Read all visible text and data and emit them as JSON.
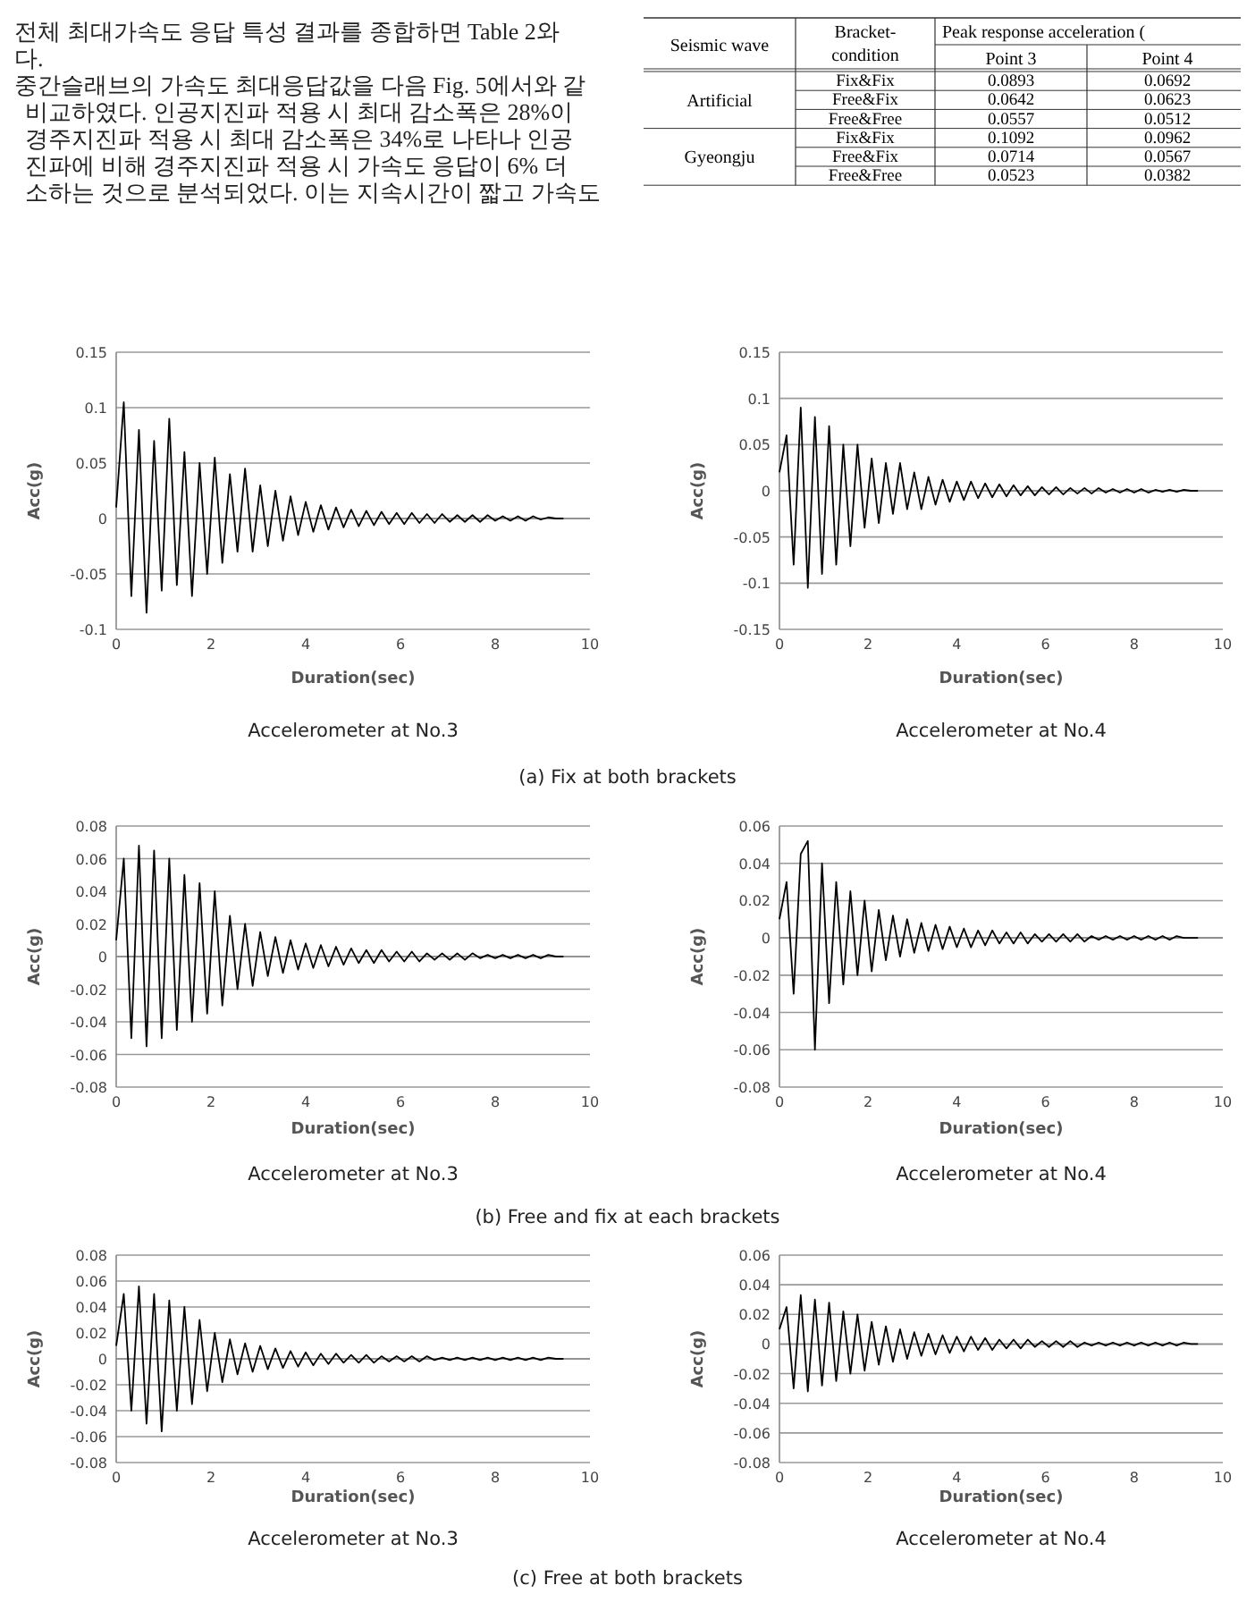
{
  "chart_data": [
    {
      "type": "other",
      "annotations": [
        "전체 최대가속도 응답 특성 결과를 종합하면 Table 2와",
        "다.",
        "중간슬래브의 가속도 최대응답값을 다음 Fig. 5에서와 같",
        "비교하였다. 인공지진파 적용 시 최대 감소폭은 28%이",
        "경주지진파 적용 시 최대 감소폭은 34%로 나타나 인공",
        "진파에 비해 경주지진파 적용 시 가속도 응답이 6% 더",
        "소하는 것으로 분석되었다. 이는 지속시간이 짧고 가속도"
      ]
    },
    {
      "type": "heatmap",
      "y2label": "Seismic wave",
      "ylabel": "Bracket-condition",
      "xlabel": "Peak response acceleration (",
      "categories": [
        "Point 3",
        "Point 4"
      ],
      "y_categories": [
        "Fix&Fix",
        "Free&Fix",
        "Free&Free",
        "Fix&Fix",
        "Free&Fix",
        "Free&Free"
      ],
      "y2_categories": [
        null,
        "Artificial",
        null,
        null,
        "Gyeongju",
        null
      ],
      "cells": [
        [
          0.0893,
          0.0692
        ],
        [
          0.0642,
          0.0623
        ],
        [
          0.0557,
          0.0512
        ],
        [
          0.1092,
          0.0962
        ],
        [
          0.0714,
          0.0567
        ],
        [
          0.0523,
          0.0382
        ]
      ],
      "data_labels": true
    },
    {
      "type": "line",
      "title": "Accelerometer at No.3",
      "xlabel": "Duration(sec)",
      "ylabel": "Acc(g)",
      "annotations": [
        "(a) Fix at both brackets"
      ],
      "x": [
        0,
        0.16,
        0.32,
        0.48,
        0.64,
        0.8,
        0.96,
        1.12,
        1.28,
        1.44,
        1.6,
        1.76,
        1.92,
        2.08,
        2.24,
        2.4,
        2.56,
        2.72,
        2.88,
        3.04,
        3.2,
        3.36,
        3.52,
        3.68,
        3.84,
        4,
        4.16,
        4.32,
        4.48,
        4.64,
        4.8,
        4.96,
        5.12,
        5.28,
        5.44,
        5.6,
        5.76,
        5.92,
        6.08,
        6.24,
        6.4,
        6.56,
        6.72,
        6.88,
        7.04,
        7.2,
        7.36,
        7.52,
        7.68,
        7.84,
        8,
        8.16,
        8.32,
        8.48,
        8.64,
        8.8,
        8.96,
        9.12,
        9.28,
        9.44
      ],
      "series": [
        {
          "color": "#000000",
          "values": [
            0.01,
            0.105,
            -0.07,
            0.08,
            -0.085,
            0.07,
            -0.065,
            0.09,
            -0.06,
            0.06,
            -0.07,
            0.05,
            -0.05,
            0.055,
            -0.04,
            0.04,
            -0.03,
            0.045,
            -0.03,
            0.03,
            -0.025,
            0.025,
            -0.02,
            0.02,
            -0.015,
            0.015,
            -0.012,
            0.012,
            -0.01,
            0.01,
            -0.008,
            0.008,
            -0.007,
            0.007,
            -0.006,
            0.006,
            -0.005,
            0.005,
            -0.005,
            0.005,
            -0.004,
            0.004,
            -0.004,
            0.004,
            -0.003,
            0.003,
            -0.003,
            0.003,
            -0.003,
            0.003,
            -0.002,
            0.002,
            -0.002,
            0.002,
            -0.002,
            0.002,
            -0.001,
            0.001,
            0,
            0
          ]
        }
      ],
      "xlim": [
        0,
        10
      ],
      "xticks": [
        0,
        2,
        4,
        6,
        8,
        10
      ],
      "ylim": [
        -0.1,
        0.15
      ],
      "yticks": [
        -0.1,
        -0.05,
        0,
        0.05,
        0.1,
        0.15
      ],
      "grid": "y"
    },
    {
      "type": "line",
      "title": "Accelerometer at No.4",
      "xlabel": "Duration(sec)",
      "ylabel": "Acc(g)",
      "x": [
        0,
        0.16,
        0.32,
        0.48,
        0.64,
        0.8,
        0.96,
        1.12,
        1.28,
        1.44,
        1.6,
        1.76,
        1.92,
        2.08,
        2.24,
        2.4,
        2.56,
        2.72,
        2.88,
        3.04,
        3.2,
        3.36,
        3.52,
        3.68,
        3.84,
        4,
        4.16,
        4.32,
        4.48,
        4.64,
        4.8,
        4.96,
        5.12,
        5.28,
        5.44,
        5.6,
        5.76,
        5.92,
        6.08,
        6.24,
        6.4,
        6.56,
        6.72,
        6.88,
        7.04,
        7.2,
        7.36,
        7.52,
        7.68,
        7.84,
        8,
        8.16,
        8.32,
        8.48,
        8.64,
        8.8,
        8.96,
        9.12,
        9.28,
        9.44
      ],
      "series": [
        {
          "color": "#000000",
          "values": [
            0.02,
            0.06,
            -0.08,
            0.09,
            -0.105,
            0.08,
            -0.09,
            0.07,
            -0.08,
            0.05,
            -0.06,
            0.05,
            -0.04,
            0.035,
            -0.035,
            0.03,
            -0.025,
            0.03,
            -0.02,
            0.02,
            -0.02,
            0.015,
            -0.015,
            0.012,
            -0.012,
            0.01,
            -0.01,
            0.01,
            -0.008,
            0.008,
            -0.007,
            0.007,
            -0.006,
            0.006,
            -0.005,
            0.005,
            -0.005,
            0.004,
            -0.004,
            0.004,
            -0.004,
            0.003,
            -0.003,
            0.003,
            -0.003,
            0.003,
            -0.002,
            0.002,
            -0.002,
            0.002,
            -0.002,
            0.002,
            -0.002,
            0.001,
            -0.001,
            0.001,
            -0.001,
            0.001,
            0,
            0
          ]
        }
      ],
      "xlim": [
        0,
        10
      ],
      "xticks": [
        0,
        2,
        4,
        6,
        8,
        10
      ],
      "ylim": [
        -0.15,
        0.15
      ],
      "yticks": [
        -0.15,
        -0.1,
        -0.05,
        0,
        0.05,
        0.1,
        0.15
      ],
      "grid": "y"
    },
    {
      "type": "line",
      "title": "Accelerometer at No.3",
      "xlabel": "Duration(sec)",
      "ylabel": "Acc(g)",
      "annotations": [
        "(b) Free and fix at each brackets"
      ],
      "x": [
        0,
        0.16,
        0.32,
        0.48,
        0.64,
        0.8,
        0.96,
        1.12,
        1.28,
        1.44,
        1.6,
        1.76,
        1.92,
        2.08,
        2.24,
        2.4,
        2.56,
        2.72,
        2.88,
        3.04,
        3.2,
        3.36,
        3.52,
        3.68,
        3.84,
        4,
        4.16,
        4.32,
        4.48,
        4.64,
        4.8,
        4.96,
        5.12,
        5.28,
        5.44,
        5.6,
        5.76,
        5.92,
        6.08,
        6.24,
        6.4,
        6.56,
        6.72,
        6.88,
        7.04,
        7.2,
        7.36,
        7.52,
        7.68,
        7.84,
        8,
        8.16,
        8.32,
        8.48,
        8.64,
        8.8,
        8.96,
        9.12,
        9.28,
        9.44
      ],
      "series": [
        {
          "color": "#000000",
          "values": [
            0.01,
            0.06,
            -0.05,
            0.068,
            -0.055,
            0.065,
            -0.05,
            0.06,
            -0.045,
            0.05,
            -0.04,
            0.045,
            -0.035,
            0.04,
            -0.03,
            0.025,
            -0.02,
            0.02,
            -0.018,
            0.015,
            -0.012,
            0.012,
            -0.01,
            0.01,
            -0.008,
            0.008,
            -0.007,
            0.007,
            -0.006,
            0.006,
            -0.005,
            0.005,
            -0.004,
            0.004,
            -0.004,
            0.004,
            -0.003,
            0.003,
            -0.003,
            0.003,
            -0.003,
            0.002,
            -0.002,
            0.002,
            -0.002,
            0.002,
            -0.002,
            0.002,
            -0.001,
            0.001,
            -0.001,
            0.001,
            -0.001,
            0.001,
            -0.001,
            0.001,
            -0.001,
            0.001,
            0,
            0
          ]
        }
      ],
      "xlim": [
        0,
        10
      ],
      "xticks": [
        0,
        2,
        4,
        6,
        8,
        10
      ],
      "ylim": [
        -0.08,
        0.08
      ],
      "yticks": [
        -0.08,
        -0.06,
        -0.04,
        -0.02,
        0,
        0.02,
        0.04,
        0.06,
        0.08
      ],
      "grid": "y"
    },
    {
      "type": "line",
      "title": "Accelerometer at No.4",
      "xlabel": "Duration(sec)",
      "ylabel": "Acc(g)",
      "x": [
        0,
        0.16,
        0.32,
        0.48,
        0.64,
        0.8,
        0.96,
        1.12,
        1.28,
        1.44,
        1.6,
        1.76,
        1.92,
        2.08,
        2.24,
        2.4,
        2.56,
        2.72,
        2.88,
        3.04,
        3.2,
        3.36,
        3.52,
        3.68,
        3.84,
        4,
        4.16,
        4.32,
        4.48,
        4.64,
        4.8,
        4.96,
        5.12,
        5.28,
        5.44,
        5.6,
        5.76,
        5.92,
        6.08,
        6.24,
        6.4,
        6.56,
        6.72,
        6.88,
        7.04,
        7.2,
        7.36,
        7.52,
        7.68,
        7.84,
        8,
        8.16,
        8.32,
        8.48,
        8.64,
        8.8,
        8.96,
        9.12,
        9.28,
        9.44
      ],
      "series": [
        {
          "color": "#000000",
          "values": [
            0.01,
            0.03,
            -0.03,
            0.045,
            0.052,
            -0.06,
            0.04,
            -0.035,
            0.03,
            -0.025,
            0.025,
            -0.02,
            0.02,
            -0.018,
            0.015,
            -0.012,
            0.012,
            -0.01,
            0.01,
            -0.008,
            0.008,
            -0.007,
            0.007,
            -0.006,
            0.006,
            -0.005,
            0.005,
            -0.005,
            0.004,
            -0.004,
            0.004,
            -0.003,
            0.003,
            -0.003,
            0.003,
            -0.003,
            0.002,
            -0.002,
            0.002,
            -0.002,
            0.002,
            -0.002,
            0.002,
            -0.002,
            0.001,
            -0.001,
            0.001,
            -0.001,
            0.001,
            -0.001,
            0.001,
            -0.001,
            0.001,
            -0.001,
            0.001,
            -0.001,
            0.001,
            0,
            0,
            0
          ]
        }
      ],
      "xlim": [
        0,
        10
      ],
      "xticks": [
        0,
        2,
        4,
        6,
        8,
        10
      ],
      "ylim": [
        -0.08,
        0.06
      ],
      "yticks": [
        -0.08,
        -0.06,
        -0.04,
        -0.02,
        0,
        0.02,
        0.04,
        0.06
      ],
      "grid": "y"
    },
    {
      "type": "line",
      "title": "Accelerometer at No.3",
      "xlabel": "Duration(sec)",
      "ylabel": "Acc(g)",
      "annotations": [
        "(c) Free at both brackets"
      ],
      "x": [
        0,
        0.16,
        0.32,
        0.48,
        0.64,
        0.8,
        0.96,
        1.12,
        1.28,
        1.44,
        1.6,
        1.76,
        1.92,
        2.08,
        2.24,
        2.4,
        2.56,
        2.72,
        2.88,
        3.04,
        3.2,
        3.36,
        3.52,
        3.68,
        3.84,
        4,
        4.16,
        4.32,
        4.48,
        4.64,
        4.8,
        4.96,
        5.12,
        5.28,
        5.44,
        5.6,
        5.76,
        5.92,
        6.08,
        6.24,
        6.4,
        6.56,
        6.72,
        6.88,
        7.04,
        7.2,
        7.36,
        7.52,
        7.68,
        7.84,
        8,
        8.16,
        8.32,
        8.48,
        8.64,
        8.8,
        8.96,
        9.12,
        9.28,
        9.44
      ],
      "series": [
        {
          "color": "#000000",
          "values": [
            0.01,
            0.05,
            -0.04,
            0.056,
            -0.05,
            0.05,
            -0.056,
            0.045,
            -0.04,
            0.04,
            -0.035,
            0.03,
            -0.025,
            0.02,
            -0.018,
            0.015,
            -0.012,
            0.012,
            -0.01,
            0.01,
            -0.008,
            0.008,
            -0.007,
            0.006,
            -0.006,
            0.005,
            -0.005,
            0.004,
            -0.004,
            0.004,
            -0.003,
            0.003,
            -0.003,
            0.003,
            -0.003,
            0.002,
            -0.002,
            0.002,
            -0.002,
            0.002,
            -0.002,
            0.002,
            -0.001,
            0.001,
            -0.001,
            0.001,
            -0.001,
            0.001,
            -0.001,
            0.001,
            -0.001,
            0.001,
            -0.001,
            0.001,
            -0.001,
            0.001,
            -0.001,
            0.001,
            0,
            0
          ]
        }
      ],
      "xlim": [
        0,
        10
      ],
      "xticks": [
        0,
        2,
        4,
        6,
        8,
        10
      ],
      "ylim": [
        -0.08,
        0.08
      ],
      "yticks": [
        -0.08,
        -0.06,
        -0.04,
        -0.02,
        0,
        0.02,
        0.04,
        0.06,
        0.08
      ],
      "grid": "y"
    },
    {
      "type": "line",
      "title": "Accelerometer at No.4",
      "xlabel": "Duration(sec)",
      "ylabel": "Acc(g)",
      "x": [
        0,
        0.16,
        0.32,
        0.48,
        0.64,
        0.8,
        0.96,
        1.12,
        1.28,
        1.44,
        1.6,
        1.76,
        1.92,
        2.08,
        2.24,
        2.4,
        2.56,
        2.72,
        2.88,
        3.04,
        3.2,
        3.36,
        3.52,
        3.68,
        3.84,
        4,
        4.16,
        4.32,
        4.48,
        4.64,
        4.8,
        4.96,
        5.12,
        5.28,
        5.44,
        5.6,
        5.76,
        5.92,
        6.08,
        6.24,
        6.4,
        6.56,
        6.72,
        6.88,
        7.04,
        7.2,
        7.36,
        7.52,
        7.68,
        7.84,
        8,
        8.16,
        8.32,
        8.48,
        8.64,
        8.8,
        8.96,
        9.12,
        9.28,
        9.44
      ],
      "series": [
        {
          "color": "#000000",
          "values": [
            0.01,
            0.025,
            -0.03,
            0.033,
            -0.032,
            0.03,
            -0.028,
            0.028,
            -0.025,
            0.022,
            -0.02,
            0.02,
            -0.018,
            0.015,
            -0.014,
            0.012,
            -0.012,
            0.01,
            -0.01,
            0.008,
            -0.008,
            0.007,
            -0.007,
            0.006,
            -0.006,
            0.005,
            -0.005,
            0.005,
            -0.004,
            0.004,
            -0.004,
            0.003,
            -0.003,
            0.003,
            -0.003,
            0.003,
            -0.002,
            0.002,
            -0.002,
            0.002,
            -0.002,
            0.002,
            -0.002,
            0.001,
            -0.001,
            0.001,
            -0.001,
            0.001,
            -0.001,
            0.001,
            -0.001,
            0.001,
            -0.001,
            0.001,
            -0.001,
            0.001,
            -0.001,
            0.001,
            0,
            0
          ]
        }
      ],
      "xlim": [
        0,
        10
      ],
      "xticks": [
        0,
        2,
        4,
        6,
        8,
        10
      ],
      "ylim": [
        -0.08,
        0.06
      ],
      "yticks": [
        -0.08,
        -0.06,
        -0.04,
        -0.02,
        0,
        0.02,
        0.04,
        0.06
      ],
      "grid": "y"
    }
  ]
}
